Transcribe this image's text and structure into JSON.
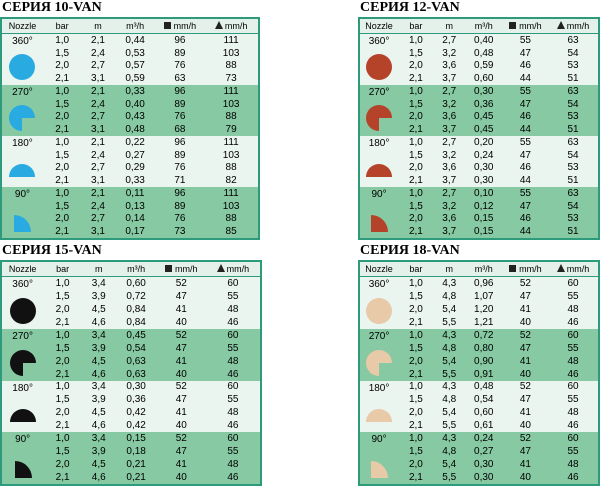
{
  "tables": [
    {
      "title": "СЕРИЯ 10-VAN",
      "icon_color": "#29abe2",
      "header": [
        "Nozzle",
        "bar",
        "m",
        "m³/h",
        "mm/h",
        "mm/h"
      ],
      "groups": [
        {
          "angle": "360°",
          "rows": [
            [
              "1,0",
              "2,1",
              "0,44",
              "96",
              "111"
            ],
            [
              "1,5",
              "2,4",
              "0,53",
              "89",
              "103"
            ],
            [
              "2,0",
              "2,7",
              "0,57",
              "76",
              "88"
            ],
            [
              "2,1",
              "3,1",
              "0,59",
              "63",
              "73"
            ]
          ]
        },
        {
          "angle": "270°",
          "rows": [
            [
              "1,0",
              "2,1",
              "0,33",
              "96",
              "111"
            ],
            [
              "1,5",
              "2,4",
              "0,40",
              "89",
              "103"
            ],
            [
              "2,0",
              "2,7",
              "0,43",
              "76",
              "88"
            ],
            [
              "2,1",
              "3,1",
              "0,48",
              "68",
              "79"
            ]
          ]
        },
        {
          "angle": "180°",
          "rows": [
            [
              "1,0",
              "2,1",
              "0,22",
              "96",
              "111"
            ],
            [
              "1,5",
              "2,4",
              "0,27",
              "89",
              "103"
            ],
            [
              "2,0",
              "2,7",
              "0,29",
              "76",
              "88"
            ],
            [
              "2,1",
              "3,1",
              "0,33",
              "71",
              "82"
            ]
          ]
        },
        {
          "angle": "90°",
          "rows": [
            [
              "1,0",
              "2,1",
              "0,11",
              "96",
              "111"
            ],
            [
              "1,5",
              "2,4",
              "0,13",
              "89",
              "103"
            ],
            [
              "2,0",
              "2,7",
              "0,14",
              "76",
              "88"
            ],
            [
              "2,1",
              "3,1",
              "0,17",
              "73",
              "85"
            ]
          ]
        }
      ]
    },
    {
      "title": "СЕРИЯ 12-VAN",
      "icon_color": "#b5432a",
      "header": [
        "Nozzle",
        "bar",
        "m",
        "m³/h",
        "mm/h",
        "mm/h"
      ],
      "groups": [
        {
          "angle": "360°",
          "rows": [
            [
              "1,0",
              "2,7",
              "0,40",
              "55",
              "63"
            ],
            [
              "1,5",
              "3,2",
              "0,48",
              "47",
              "54"
            ],
            [
              "2,0",
              "3,6",
              "0,59",
              "46",
              "53"
            ],
            [
              "2,1",
              "3,7",
              "0,60",
              "44",
              "51"
            ]
          ]
        },
        {
          "angle": "270°",
          "rows": [
            [
              "1,0",
              "2,7",
              "0,30",
              "55",
              "63"
            ],
            [
              "1,5",
              "3,2",
              "0,36",
              "47",
              "54"
            ],
            [
              "2,0",
              "3,6",
              "0,45",
              "46",
              "53"
            ],
            [
              "2,1",
              "3,7",
              "0,45",
              "44",
              "51"
            ]
          ]
        },
        {
          "angle": "180°",
          "rows": [
            [
              "1,0",
              "2,7",
              "0,20",
              "55",
              "63"
            ],
            [
              "1,5",
              "3,2",
              "0,24",
              "47",
              "54"
            ],
            [
              "2,0",
              "3,6",
              "0,30",
              "46",
              "53"
            ],
            [
              "2,1",
              "3,7",
              "0,30",
              "44",
              "51"
            ]
          ]
        },
        {
          "angle": "90°",
          "rows": [
            [
              "1,0",
              "2,7",
              "0,10",
              "55",
              "63"
            ],
            [
              "1,5",
              "3,2",
              "0,12",
              "47",
              "54"
            ],
            [
              "2,0",
              "3,6",
              "0,15",
              "46",
              "53"
            ],
            [
              "2,1",
              "3,7",
              "0,15",
              "44",
              "51"
            ]
          ]
        }
      ]
    },
    {
      "title": "СЕРИЯ 15-VAN",
      "icon_color": "#111111",
      "header": [
        "Nozzle",
        "bar",
        "m",
        "m³/h",
        "mm/h",
        "mm/h"
      ],
      "groups": [
        {
          "angle": "360°",
          "rows": [
            [
              "1,0",
              "3,4",
              "0,60",
              "52",
              "60"
            ],
            [
              "1,5",
              "3,9",
              "0,72",
              "47",
              "55"
            ],
            [
              "2,0",
              "4,5",
              "0,84",
              "41",
              "48"
            ],
            [
              "2,1",
              "4,6",
              "0,84",
              "40",
              "46"
            ]
          ]
        },
        {
          "angle": "270°",
          "rows": [
            [
              "1,0",
              "3,4",
              "0,45",
              "52",
              "60"
            ],
            [
              "1,5",
              "3,9",
              "0,54",
              "47",
              "55"
            ],
            [
              "2,0",
              "4,5",
              "0,63",
              "41",
              "48"
            ],
            [
              "2,1",
              "4,6",
              "0,63",
              "40",
              "46"
            ]
          ]
        },
        {
          "angle": "180°",
          "rows": [
            [
              "1,0",
              "3,4",
              "0,30",
              "52",
              "60"
            ],
            [
              "1,5",
              "3,9",
              "0,36",
              "47",
              "55"
            ],
            [
              "2,0",
              "4,5",
              "0,42",
              "41",
              "48"
            ],
            [
              "2,1",
              "4,6",
              "0,42",
              "40",
              "46"
            ]
          ]
        },
        {
          "angle": "90°",
          "rows": [
            [
              "1,0",
              "3,4",
              "0,15",
              "52",
              "60"
            ],
            [
              "1,5",
              "3,9",
              "0,18",
              "47",
              "55"
            ],
            [
              "2,0",
              "4,5",
              "0,21",
              "41",
              "48"
            ],
            [
              "2,1",
              "4,6",
              "0,21",
              "40",
              "46"
            ]
          ]
        }
      ]
    },
    {
      "title": "СЕРИЯ 18-VAN",
      "icon_color": "#e8c9a8",
      "header": [
        "Nozzle",
        "bar",
        "m",
        "m³/h",
        "mm/h",
        "mm/h"
      ],
      "groups": [
        {
          "angle": "360°",
          "rows": [
            [
              "1,0",
              "4,3",
              "0,96",
              "52",
              "60"
            ],
            [
              "1,5",
              "4,8",
              "1,07",
              "47",
              "55"
            ],
            [
              "2,0",
              "5,4",
              "1,20",
              "41",
              "48"
            ],
            [
              "2,1",
              "5,5",
              "1,21",
              "40",
              "46"
            ]
          ]
        },
        {
          "angle": "270°",
          "rows": [
            [
              "1,0",
              "4,3",
              "0,72",
              "52",
              "60"
            ],
            [
              "1,5",
              "4,8",
              "0,80",
              "47",
              "55"
            ],
            [
              "2,0",
              "5,4",
              "0,90",
              "41",
              "48"
            ],
            [
              "2,1",
              "5,5",
              "0,91",
              "40",
              "46"
            ]
          ]
        },
        {
          "angle": "180°",
          "rows": [
            [
              "1,0",
              "4,3",
              "0,48",
              "52",
              "60"
            ],
            [
              "1,5",
              "4,8",
              "0,54",
              "47",
              "55"
            ],
            [
              "2,0",
              "5,4",
              "0,60",
              "41",
              "48"
            ],
            [
              "2,1",
              "5,5",
              "0,61",
              "40",
              "46"
            ]
          ]
        },
        {
          "angle": "90°",
          "rows": [
            [
              "1,0",
              "4,3",
              "0,24",
              "52",
              "60"
            ],
            [
              "1,5",
              "4,8",
              "0,27",
              "47",
              "55"
            ],
            [
              "2,0",
              "5,4",
              "0,30",
              "41",
              "48"
            ],
            [
              "2,1",
              "5,5",
              "0,30",
              "40",
              "46"
            ]
          ]
        }
      ]
    }
  ]
}
